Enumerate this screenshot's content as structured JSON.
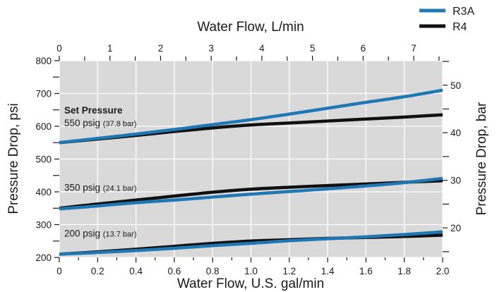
{
  "chart_data": {
    "type": "line",
    "xlabel": "Water Flow, U.S. gal/min",
    "ylabel": "Pressure Drop, psi",
    "x2label": "Water Flow, L/min",
    "y2label": "Pressure Drop, bar",
    "xlim": [
      0,
      2.0
    ],
    "ylim": [
      200,
      800
    ],
    "x_ticks": [
      "0",
      "0.2",
      "0.4",
      "0.6",
      "0.8",
      "1.0",
      "1.2",
      "1.4",
      "1.6",
      "1.8",
      "2.0"
    ],
    "y_ticks": [
      "200",
      "300",
      "400",
      "500",
      "600",
      "700",
      "800"
    ],
    "x2_ticks": [
      "0",
      "1",
      "2",
      "3",
      "4",
      "5",
      "6",
      "7"
    ],
    "y2_ticks": [
      "20",
      "30",
      "40",
      "50"
    ],
    "grid": true,
    "legend_position": "top-right",
    "series_styles": {
      "R3A": "#1f77b4",
      "R4": "#111111"
    },
    "x": [
      0,
      0.2,
      0.4,
      0.6,
      0.8,
      1.0,
      1.2,
      1.4,
      1.6,
      1.8,
      2.0
    ],
    "series": [
      {
        "name": "R3A",
        "group": "550",
        "values": [
          550,
          563,
          576,
          590,
          605,
          620,
          637,
          655,
          673,
          690,
          710
        ]
      },
      {
        "name": "R4",
        "group": "550",
        "values": [
          550,
          561,
          572,
          584,
          595,
          604,
          610,
          616,
          622,
          628,
          635
        ]
      },
      {
        "name": "R3A",
        "group": "350",
        "values": [
          348,
          357,
          367,
          375,
          384,
          393,
          401,
          409,
          418,
          428,
          441
        ]
      },
      {
        "name": "R4",
        "group": "350",
        "values": [
          350,
          363,
          375,
          387,
          399,
          408,
          414,
          419,
          424,
          429,
          434
        ]
      },
      {
        "name": "R3A",
        "group": "200",
        "values": [
          210,
          215,
          221,
          228,
          236,
          243,
          251,
          257,
          263,
          270,
          278
        ]
      },
      {
        "name": "R4",
        "group": "200",
        "values": [
          210,
          217,
          225,
          234,
          243,
          250,
          254,
          258,
          261,
          264,
          268
        ]
      }
    ],
    "legend": [
      "R3A",
      "R4"
    ],
    "annotations": {
      "set_pressure_title": "Set Pressure",
      "labels": [
        {
          "main": "550 psig",
          "sub": "(37.8 bar)",
          "y": 600
        },
        {
          "main": "350 psig",
          "sub": "(24.1 bar)",
          "y": 403
        },
        {
          "main": "200 psig",
          "sub": "(13.7 bar)",
          "y": 263
        }
      ]
    }
  }
}
